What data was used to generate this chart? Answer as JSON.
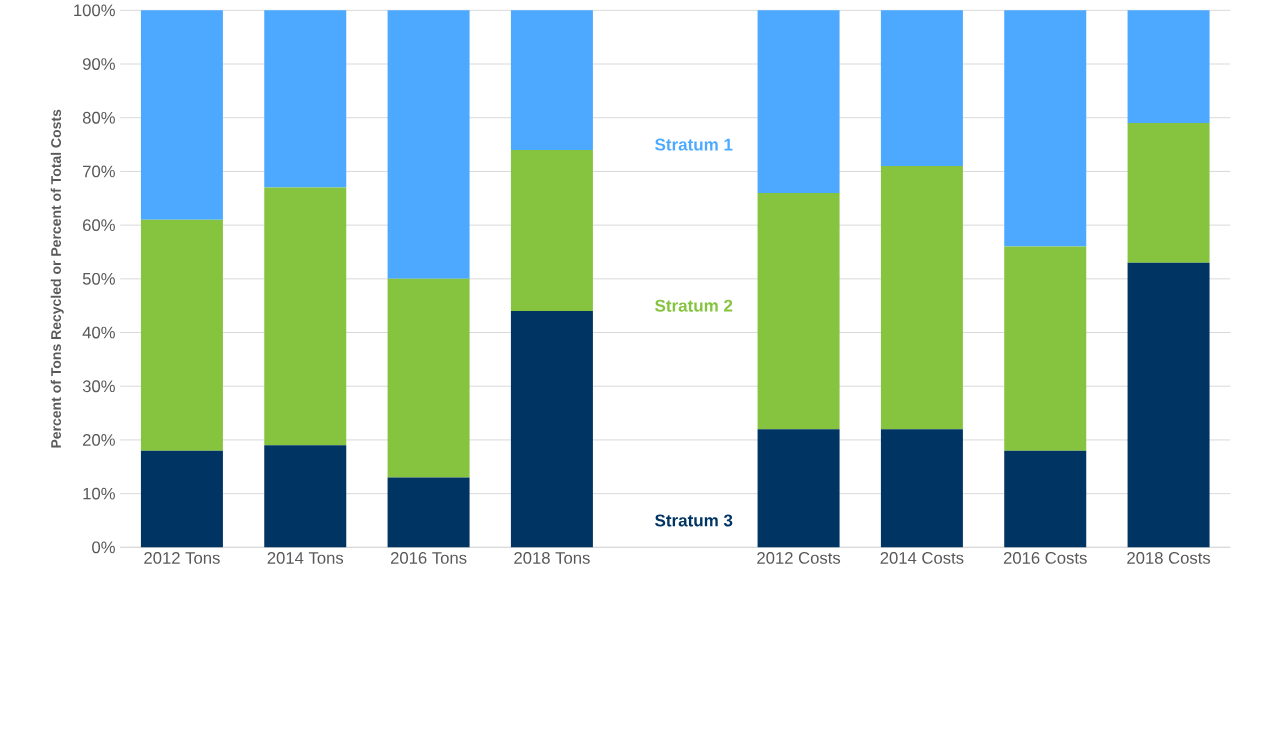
{
  "chart_data": {
    "type": "bar",
    "stacked": true,
    "ylabel": "Percent of Tons Recycled or Percent of Total Costs",
    "categories": [
      "2012 Tons",
      "2014 Tons",
      "2016 Tons",
      "2018 Tons",
      null,
      "2012 Costs",
      "2014 Costs",
      "2016 Costs",
      "2018 Costs"
    ],
    "series": [
      {
        "name": "Stratum 3",
        "color": "#003462",
        "values": [
          18,
          19,
          13,
          44,
          null,
          22,
          22,
          18,
          53
        ]
      },
      {
        "name": "Stratum 2",
        "color": "#86c440",
        "values": [
          43,
          48,
          37,
          30,
          null,
          44,
          49,
          38,
          26
        ]
      },
      {
        "name": "Stratum 1",
        "color": "#4da9ff",
        "values": [
          39,
          33,
          50,
          26,
          null,
          34,
          29,
          44,
          21
        ]
      }
    ],
    "ylim": [
      0,
      100
    ],
    "yticks": [
      {
        "value": 0,
        "label": "0%"
      },
      {
        "value": 10,
        "label": "10%"
      },
      {
        "value": 20,
        "label": "20%"
      },
      {
        "value": 30,
        "label": "30%"
      },
      {
        "value": 40,
        "label": "40%"
      },
      {
        "value": 50,
        "label": "50%"
      },
      {
        "value": 60,
        "label": "60%"
      },
      {
        "value": 70,
        "label": "70%"
      },
      {
        "value": 80,
        "label": "80%"
      },
      {
        "value": 90,
        "label": "90%"
      },
      {
        "value": 100,
        "label": "100%"
      }
    ],
    "grid": "y"
  }
}
